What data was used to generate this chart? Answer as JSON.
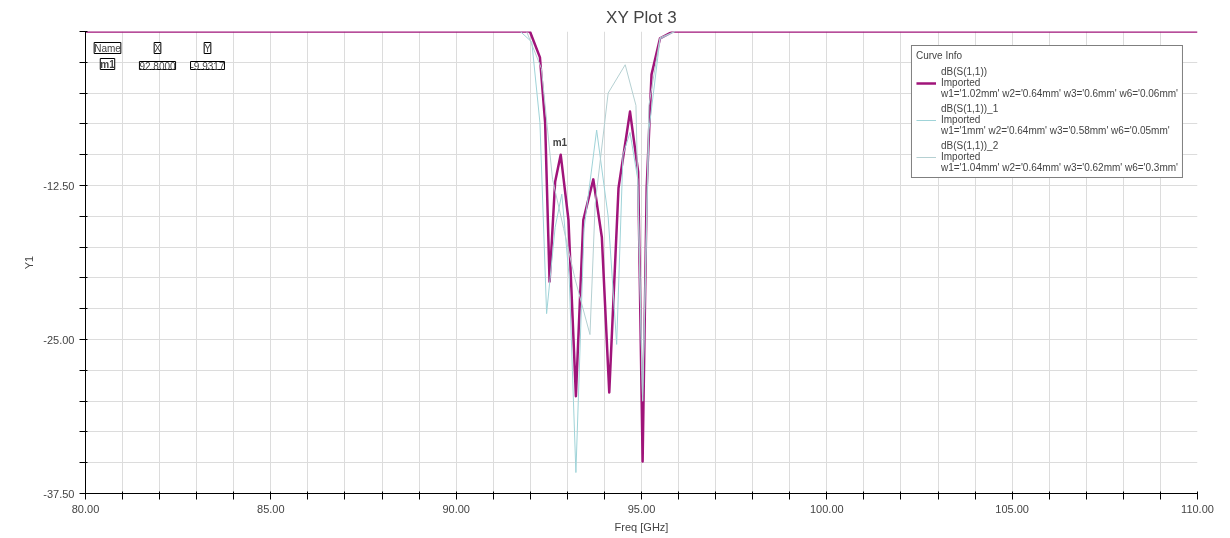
{
  "chart_data": {
    "type": "line",
    "title": "XY Plot 3",
    "xlabel": "Freq [GHz]",
    "ylabel": "Y1",
    "legend_title": "Curve Info",
    "xlim": [
      80,
      110
    ],
    "ylim": [
      -37.5,
      0
    ],
    "xticks": [
      {
        "value": 80,
        "label": "80.00"
      },
      {
        "value": 81,
        "label": null
      },
      {
        "value": 82,
        "label": null
      },
      {
        "value": 83,
        "label": null
      },
      {
        "value": 84,
        "label": null
      },
      {
        "value": 85,
        "label": "85.00"
      },
      {
        "value": 86,
        "label": null
      },
      {
        "value": 87,
        "label": null
      },
      {
        "value": 88,
        "label": null
      },
      {
        "value": 89,
        "label": null
      },
      {
        "value": 90,
        "label": "90.00"
      },
      {
        "value": 91,
        "label": null
      },
      {
        "value": 92,
        "label": null
      },
      {
        "value": 93,
        "label": null
      },
      {
        "value": 94,
        "label": null
      },
      {
        "value": 95,
        "label": "95.00"
      },
      {
        "value": 96,
        "label": null
      },
      {
        "value": 97,
        "label": null
      },
      {
        "value": 98,
        "label": null
      },
      {
        "value": 99,
        "label": null
      },
      {
        "value": 100,
        "label": "100.00"
      },
      {
        "value": 101,
        "label": null
      },
      {
        "value": 102,
        "label": null
      },
      {
        "value": 103,
        "label": null
      },
      {
        "value": 104,
        "label": null
      },
      {
        "value": 105,
        "label": "105.00"
      },
      {
        "value": 106,
        "label": null
      },
      {
        "value": 107,
        "label": null
      },
      {
        "value": 108,
        "label": null
      },
      {
        "value": 109,
        "label": null
      },
      {
        "value": 110,
        "label": "110.00"
      }
    ],
    "yticks": [
      {
        "value": -37.5,
        "label": "-37.50"
      },
      {
        "value": -35,
        "label": null
      },
      {
        "value": -32.5,
        "label": null
      },
      {
        "value": -30,
        "label": null
      },
      {
        "value": -27.5,
        "label": null
      },
      {
        "value": -25,
        "label": "-25.00"
      },
      {
        "value": -22.5,
        "label": null
      },
      {
        "value": -20,
        "label": null
      },
      {
        "value": -17.5,
        "label": null
      },
      {
        "value": -15,
        "label": null
      },
      {
        "value": -12.5,
        "label": "-12.50"
      },
      {
        "value": -10,
        "label": null
      },
      {
        "value": -7.5,
        "label": null
      },
      {
        "value": -5,
        "label": null
      },
      {
        "value": -2.5,
        "label": null
      },
      {
        "value": 0,
        "label": null
      }
    ],
    "grid": true,
    "legend": "top right",
    "line_style": "solid",
    "marker": "none",
    "annotations": [
      "Name",
      "X",
      "Y",
      "m1",
      "92.8000",
      "-9.9317",
      {
        "text": "m1",
        "x": 92.8,
        "y": -9.9317
      }
    ],
    "series": [
      {
        "name": "dB(S(1,1))\nImported\nw1='1.02mm' w2='0.64mm' w3='0.6mm' w6='0.06mm'",
        "color": "#a0147a",
        "x": [
          80,
          91.99,
          92.26,
          92.4,
          92.52,
          92.67,
          92.82,
          93.03,
          93.23,
          93.43,
          93.7,
          93.93,
          94.13,
          94.38,
          94.69,
          94.91,
          95.03,
          95.14,
          95.27,
          95.5,
          95.85,
          110
        ],
        "values": [
          0,
          0,
          -2.1,
          -7.4,
          -20.3,
          -12.2,
          -10.0,
          -15.3,
          -29.6,
          -15.3,
          -12.0,
          -16.7,
          -29.3,
          -12.7,
          -6.5,
          -11.4,
          -34.9,
          -12.7,
          -3.5,
          -0.55,
          0,
          0
        ]
      },
      {
        "name": "dB(S(1,1))_1\nImported\nw1='1mm' w2='0.64mm' w3='0.58mm' w6='0.05mm'",
        "color": "#9fd3d8",
        "x": [
          91.73,
          92.04,
          92.26,
          92.44,
          92.67,
          92.85,
          93.05,
          93.23,
          93.45,
          93.79,
          94.1,
          94.33,
          94.5,
          94.69,
          94.9,
          95.03,
          95.2,
          95.5,
          95.9
        ],
        "values": [
          0,
          -0.85,
          -7.4,
          -22.9,
          -15.9,
          -13.2,
          -20,
          -35.8,
          -16,
          -8.0,
          -15,
          -25.4,
          -10,
          -8.2,
          -12,
          -30,
          -8,
          -0.6,
          0
        ]
      },
      {
        "name": "dB(S(1,1))_2\nImported\nw1='1.04mm' w2='0.64mm' w3='0.62mm' w6='0.3mm'",
        "color": "#b5d0d2",
        "x": [
          91.9,
          92.3,
          92.6,
          92.9,
          93.2,
          93.61,
          93.75,
          94.1,
          94.56,
          94.85,
          95.03,
          95.2,
          95.5,
          95.9
        ],
        "values": [
          0,
          -3,
          -12,
          -16,
          -20,
          -24.6,
          -14,
          -5,
          -2.7,
          -6,
          -30,
          -6,
          -0.5,
          0
        ]
      }
    ]
  }
}
